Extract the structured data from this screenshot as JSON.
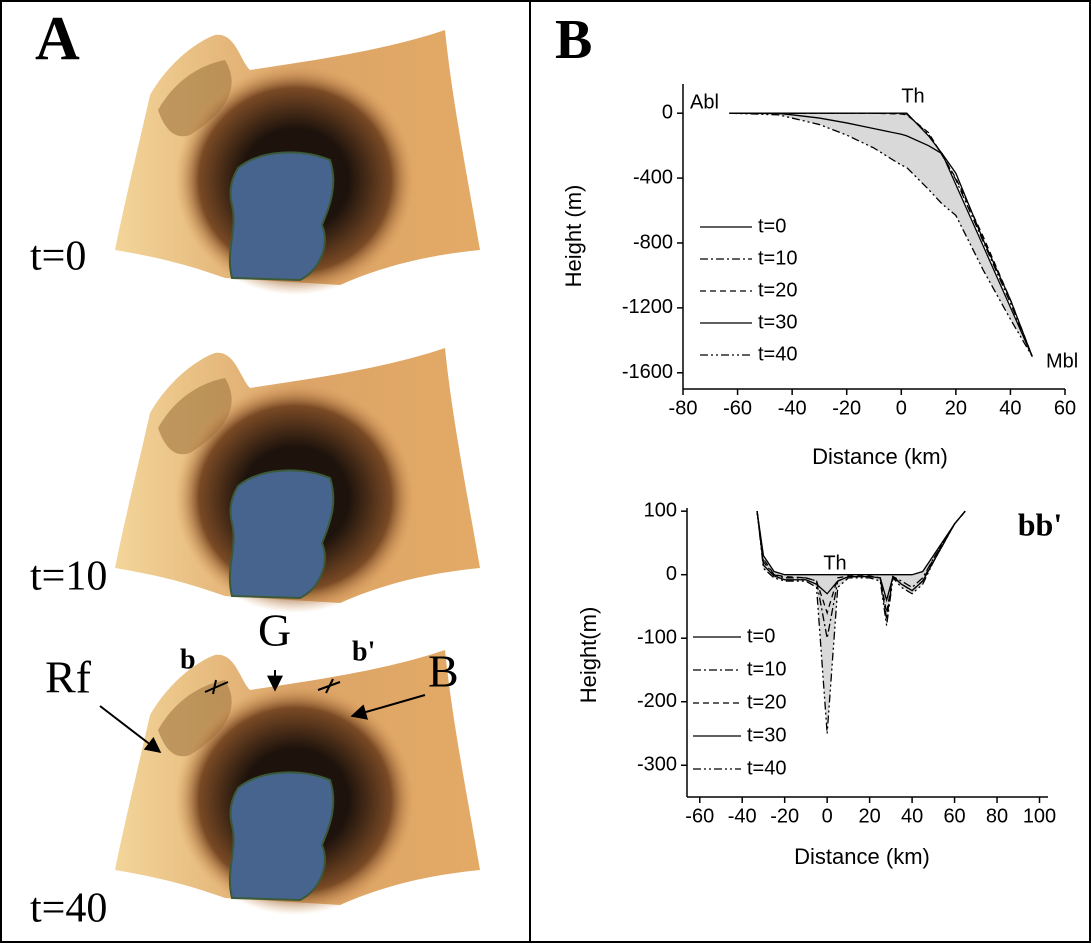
{
  "panel_a": {
    "label": "A",
    "frames": [
      "t=0",
      "t=10",
      "t=40"
    ],
    "annotations": [
      "Rf",
      "b",
      "G",
      "b'",
      "B"
    ]
  },
  "panel_b": {
    "label": "B"
  },
  "chart_data": [
    {
      "type": "line",
      "xlabel": "Distance (km)",
      "ylabel": "Height (m)",
      "annotations": [
        "Abl",
        "Th",
        "Mbl"
      ],
      "x": [
        -63,
        -45,
        -40,
        -30,
        -20,
        -10,
        0,
        2,
        10,
        15,
        20,
        30,
        40,
        48
      ],
      "series": [
        {
          "name": "t=0",
          "color": "#000000",
          "style": "solid",
          "values": [
            0,
            0,
            0,
            0,
            0,
            0,
            0,
            0,
            -140,
            -250,
            -440,
            -818,
            -1197,
            -1500
          ]
        },
        {
          "name": "t=10",
          "color": "#000000",
          "style": "dashdot",
          "values": [
            0,
            0,
            0,
            0,
            0,
            0,
            -2,
            -5,
            -130,
            -255,
            -410,
            -790,
            -1170,
            -1500
          ]
        },
        {
          "name": "t=20",
          "color": "#000000",
          "style": "dashed",
          "values": [
            0,
            0,
            0,
            0,
            0,
            0,
            -5,
            -10,
            -120,
            -260,
            -400,
            -760,
            -1150,
            -1500
          ]
        },
        {
          "name": "t=30",
          "color": "#000000",
          "style": "solid",
          "values": [
            0,
            -2,
            -10,
            -30,
            -60,
            -95,
            -130,
            -140,
            -200,
            -250,
            -370,
            -780,
            -1150,
            -1500
          ]
        },
        {
          "name": "t=40",
          "color": "#000000",
          "style": "dashdotdot",
          "values": [
            0,
            -10,
            -30,
            -70,
            -135,
            -215,
            -320,
            -335,
            -470,
            -560,
            -630,
            -966,
            -1270,
            -1500
          ]
        }
      ],
      "shade_color": "#d9d9d9",
      "legend": "center left",
      "xlim": [
        -80,
        60
      ],
      "xticks": [
        -80,
        -60,
        -40,
        -20,
        0,
        20,
        40,
        60
      ],
      "ylim": [
        -1700,
        180
      ],
      "yticks": [
        0,
        -400,
        -800,
        -1200,
        -1600
      ]
    },
    {
      "type": "line",
      "xlabel": "Distance (km)",
      "ylabel": "Height(m)",
      "title": "bb'",
      "annotations": [
        "Th"
      ],
      "x": [
        -33,
        -30,
        -25,
        -20,
        -10,
        -5,
        0,
        5,
        10,
        20,
        25,
        28,
        31,
        35,
        40,
        45,
        50,
        55,
        60,
        65
      ],
      "series": [
        {
          "name": "t=0",
          "color": "#000000",
          "style": "solid",
          "values": [
            100,
            30,
            5,
            0,
            0,
            0,
            0,
            0,
            0,
            0,
            0,
            0,
            0,
            0,
            0,
            5,
            30,
            55,
            80,
            100
          ]
        },
        {
          "name": "t=10",
          "color": "#000000",
          "style": "dashdot",
          "values": [
            100,
            20,
            0,
            -5,
            -5,
            -10,
            -100,
            -10,
            -3,
            -3,
            -5,
            -70,
            -3,
            -10,
            -20,
            -5,
            25,
            52,
            80,
            100
          ]
        },
        {
          "name": "t=20",
          "color": "#000000",
          "style": "dashed",
          "values": [
            100,
            25,
            0,
            -3,
            -5,
            -10,
            -60,
            -5,
            -2,
            -2,
            -5,
            -60,
            -2,
            -15,
            -25,
            -10,
            25,
            52,
            80,
            100
          ]
        },
        {
          "name": "t=30",
          "color": "#000000",
          "style": "solid",
          "values": [
            100,
            15,
            -2,
            -8,
            -8,
            -15,
            -30,
            -10,
            -3,
            -3,
            -5,
            -40,
            -3,
            -15,
            -25,
            -10,
            20,
            50,
            80,
            100
          ]
        },
        {
          "name": "t=40",
          "color": "#000000",
          "style": "dashdotdot",
          "values": [
            100,
            10,
            -5,
            -10,
            -10,
            -20,
            -250,
            -20,
            -5,
            -5,
            -10,
            -80,
            -5,
            -20,
            -30,
            -15,
            20,
            50,
            80,
            100
          ]
        }
      ],
      "shade_color": "#d9d9d9",
      "legend": "lower left",
      "xlim": [
        -66,
        104
      ],
      "xticks": [
        -60,
        -40,
        -20,
        0,
        20,
        40,
        60,
        80,
        100
      ],
      "ylim": [
        -350,
        105
      ],
      "yticks": [
        100,
        0,
        -100,
        -200,
        -300
      ]
    }
  ]
}
